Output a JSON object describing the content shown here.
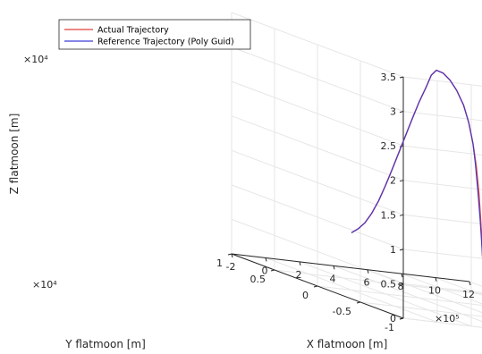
{
  "chart_data": {
    "type": "line3d",
    "title": "",
    "xlabel": "X flatmoon [m]",
    "ylabel": "Y flatmoon [m]",
    "zlabel": "Z flatmoon [m]",
    "x_exponent": "×10⁵",
    "y_exponent": "×10⁴",
    "z_exponent": "×10⁴",
    "xlim": [
      -2,
      12
    ],
    "ylim": [
      -1,
      1
    ],
    "zlim": [
      0,
      3.5
    ],
    "x_ticks": [
      "-2",
      "0",
      "2",
      "4",
      "6",
      "8",
      "10",
      "12"
    ],
    "y_ticks": [
      "1",
      "0.5",
      "0",
      "-0.5",
      "-1"
    ],
    "z_ticks": [
      "0",
      "0.5",
      "1",
      "1.5",
      "2",
      "2.5",
      "3",
      "3.5"
    ],
    "grid": true,
    "legend_position": "top-left",
    "series": [
      {
        "name": "Actual Trajectory",
        "color": "#e0413a",
        "points": [
          [
            0.0,
            0,
            0.83
          ],
          [
            0.4,
            0,
            0.9
          ],
          [
            0.8,
            0,
            1.0
          ],
          [
            1.2,
            0,
            1.15
          ],
          [
            1.6,
            0,
            1.34
          ],
          [
            2.0,
            0,
            1.57
          ],
          [
            2.4,
            0,
            1.82
          ],
          [
            2.8,
            0,
            2.08
          ],
          [
            3.2,
            0,
            2.34
          ],
          [
            3.6,
            0,
            2.6
          ],
          [
            4.0,
            0,
            2.85
          ],
          [
            4.4,
            0,
            3.07
          ],
          [
            4.7,
            0,
            3.25
          ],
          [
            5.0,
            0,
            3.33
          ],
          [
            5.4,
            0,
            3.3
          ],
          [
            5.8,
            0,
            3.21
          ],
          [
            6.2,
            0,
            3.07
          ],
          [
            6.6,
            0,
            2.87
          ],
          [
            6.9,
            0,
            2.63
          ],
          [
            7.15,
            0,
            2.33
          ],
          [
            7.35,
            0,
            2.0
          ],
          [
            7.5,
            0,
            1.62
          ],
          [
            7.6,
            0,
            1.25
          ],
          [
            7.68,
            0,
            0.92
          ],
          [
            7.73,
            0,
            0.65
          ],
          [
            7.76,
            0,
            0.4
          ]
        ]
      },
      {
        "name": "Reference Trajectory (Poly Guid)",
        "color": "#3a3ad6",
        "points": [
          [
            0.0,
            0,
            0.83
          ],
          [
            0.4,
            0,
            0.9
          ],
          [
            0.8,
            0,
            1.0
          ],
          [
            1.2,
            0,
            1.15
          ],
          [
            1.6,
            0,
            1.34
          ],
          [
            2.0,
            0,
            1.57
          ],
          [
            2.4,
            0,
            1.82
          ],
          [
            2.8,
            0,
            2.08
          ],
          [
            3.2,
            0,
            2.34
          ],
          [
            3.6,
            0,
            2.6
          ],
          [
            4.0,
            0,
            2.85
          ],
          [
            4.4,
            0,
            3.07
          ],
          [
            4.7,
            0,
            3.25
          ],
          [
            5.0,
            0,
            3.33
          ],
          [
            5.4,
            0,
            3.3
          ],
          [
            5.8,
            0,
            3.21
          ],
          [
            6.2,
            0,
            3.07
          ],
          [
            6.6,
            0,
            2.87
          ],
          [
            6.9,
            0,
            2.63
          ],
          [
            7.15,
            0,
            2.33
          ],
          [
            7.3,
            0,
            2.02
          ],
          [
            7.45,
            0,
            1.62
          ],
          [
            7.57,
            0,
            1.25
          ],
          [
            7.66,
            0,
            0.92
          ],
          [
            7.72,
            0,
            0.65
          ],
          [
            7.76,
            0,
            0.4
          ]
        ]
      }
    ]
  }
}
